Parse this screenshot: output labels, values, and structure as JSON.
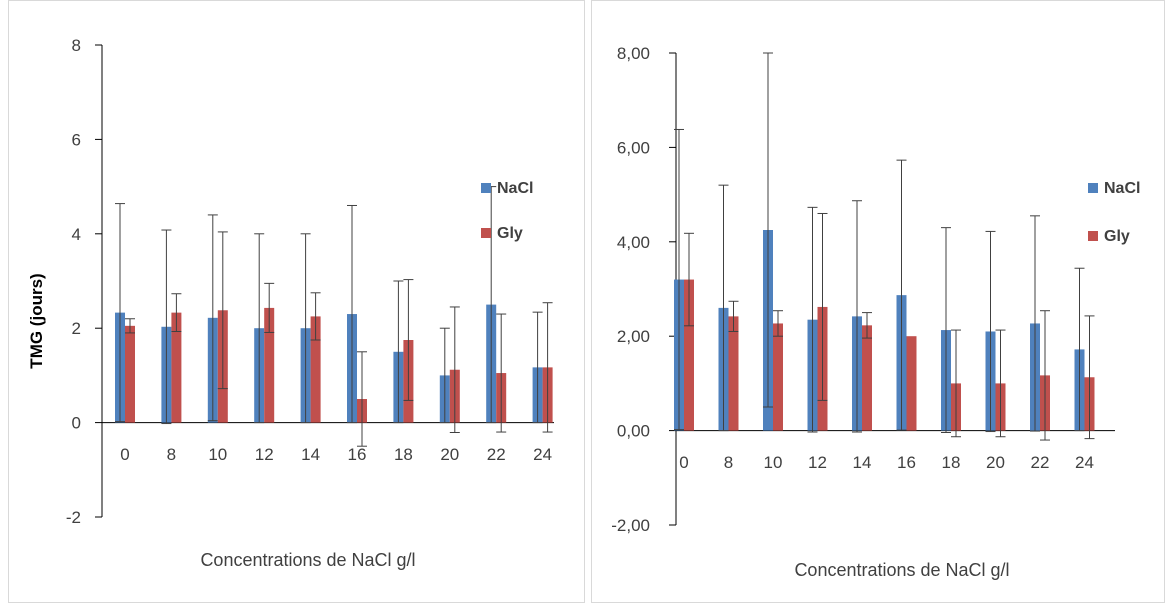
{
  "chart_data": [
    {
      "type": "bar",
      "title": "",
      "ylabel": "TMG (jours)",
      "xlabel": "Concentrations de NaCl g/l",
      "categories": [
        "0",
        "8",
        "10",
        "12",
        "14",
        "16",
        "18",
        "20",
        "22",
        "24"
      ],
      "ylim": [
        -2,
        8
      ],
      "yticks": [
        -2,
        0,
        2,
        4,
        6,
        8
      ],
      "ytick_labels": [
        "-2",
        "0",
        "2",
        "4",
        "6",
        "8"
      ],
      "legend_position": "right",
      "grid": false,
      "series": [
        {
          "name": "NaCl",
          "color": "#4f81bd",
          "values": [
            2.33,
            2.03,
            2.22,
            2.0,
            2.0,
            2.3,
            1.5,
            1.0,
            2.5,
            1.17
          ],
          "errors": [
            2.31,
            2.05,
            2.18,
            2.0,
            2.0,
            2.3,
            1.5,
            1.0,
            2.5,
            1.17
          ]
        },
        {
          "name": "Gly",
          "color": "#c0504d",
          "values": [
            2.05,
            2.33,
            2.38,
            2.43,
            2.25,
            0.5,
            1.75,
            1.12,
            1.05,
            1.17
          ],
          "errors": [
            0.15,
            0.4,
            1.66,
            0.52,
            0.5,
            1.0,
            1.28,
            1.33,
            1.25,
            1.37
          ]
        }
      ]
    },
    {
      "type": "bar",
      "title": "",
      "ylabel": "",
      "xlabel": "Concentrations de NaCl g/l",
      "categories": [
        "0",
        "8",
        "10",
        "12",
        "14",
        "16",
        "18",
        "20",
        "22",
        "24"
      ],
      "ylim": [
        -2,
        8
      ],
      "yticks": [
        -2,
        0,
        2,
        4,
        6,
        8
      ],
      "ytick_labels": [
        "-2,00",
        "0,00",
        "2,00",
        "4,00",
        "6,00",
        "8,00"
      ],
      "legend_position": "right",
      "grid": false,
      "series": [
        {
          "name": "NaCl",
          "color": "#4f81bd",
          "values": [
            3.2,
            2.6,
            4.25,
            2.35,
            2.42,
            2.87,
            2.13,
            2.1,
            2.27,
            1.72
          ],
          "errors": [
            3.18,
            2.6,
            3.75,
            2.38,
            2.45,
            2.86,
            2.17,
            2.12,
            2.28,
            1.72
          ]
        },
        {
          "name": "Gly",
          "color": "#c0504d",
          "values": [
            3.2,
            2.42,
            2.27,
            2.62,
            2.23,
            2.0,
            1.0,
            1.0,
            1.17,
            1.13
          ],
          "errors": [
            0.98,
            0.32,
            0.27,
            1.98,
            0.27,
            0.0,
            1.13,
            1.13,
            1.37,
            1.3
          ]
        }
      ]
    }
  ]
}
